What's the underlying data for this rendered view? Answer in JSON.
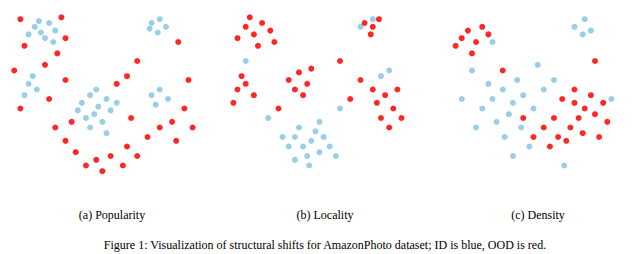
{
  "caption": "Figure 1: Visualization of structural shifts for AmazonPhoto dataset; ID is blue, OOD is red.",
  "chart_data": [
    {
      "type": "scatter",
      "title": "(a) Popularity",
      "xlim": [
        0,
        100
      ],
      "ylim": [
        0,
        100
      ],
      "tick_labels": false,
      "grid": false,
      "series": [
        {
          "name": "ID",
          "color": "#87c5e3",
          "values": [
            [
              15,
              88
            ],
            [
              18,
              85
            ],
            [
              22,
              90
            ],
            [
              25,
              86
            ],
            [
              20,
              82
            ],
            [
              12,
              84
            ],
            [
              24,
              80
            ],
            [
              17,
              91
            ],
            [
              72,
              90
            ],
            [
              76,
              92
            ],
            [
              79,
              88
            ],
            [
              75,
              85
            ],
            [
              71,
              87
            ],
            [
              12,
              58
            ],
            [
              16,
              55
            ],
            [
              10,
              52
            ],
            [
              14,
              62
            ],
            [
              38,
              48
            ],
            [
              42,
              52
            ],
            [
              46,
              46
            ],
            [
              50,
              50
            ],
            [
              44,
              42
            ],
            [
              40,
              40
            ],
            [
              48,
              38
            ],
            [
              52,
              44
            ],
            [
              36,
              44
            ],
            [
              45,
              55
            ],
            [
              55,
              48
            ],
            [
              42,
              35
            ],
            [
              50,
              32
            ],
            [
              72,
              52
            ],
            [
              76,
              55
            ],
            [
              80,
              50
            ],
            [
              74,
              47
            ]
          ]
        },
        {
          "name": "OOD",
          "color": "#ff0000",
          "values": [
            [
              8,
              92
            ],
            [
              28,
              93
            ],
            [
              30,
              82
            ],
            [
              10,
              78
            ],
            [
              26,
              74
            ],
            [
              5,
              65
            ],
            [
              20,
              68
            ],
            [
              8,
              45
            ],
            [
              22,
              50
            ],
            [
              30,
              60
            ],
            [
              60,
              62
            ],
            [
              65,
              70
            ],
            [
              85,
              80
            ],
            [
              90,
              60
            ],
            [
              88,
              45
            ],
            [
              82,
              38
            ],
            [
              76,
              35
            ],
            [
              70,
              30
            ],
            [
              60,
              25
            ],
            [
              52,
              20
            ],
            [
              45,
              18
            ],
            [
              40,
              15
            ],
            [
              35,
              22
            ],
            [
              30,
              28
            ],
            [
              25,
              35
            ],
            [
              58,
              15
            ],
            [
              65,
              20
            ],
            [
              48,
              12
            ],
            [
              84,
              28
            ],
            [
              92,
              35
            ],
            [
              55,
              58
            ],
            [
              33,
              38
            ],
            [
              62,
              40
            ]
          ]
        }
      ]
    },
    {
      "type": "scatter",
      "title": "(b) Locality",
      "xlim": [
        0,
        100
      ],
      "ylim": [
        0,
        100
      ],
      "tick_labels": false,
      "grid": false,
      "series": [
        {
          "name": "ID",
          "color": "#87c5e3",
          "values": [
            [
              38,
              30
            ],
            [
              42,
              25
            ],
            [
              46,
              28
            ],
            [
              50,
              22
            ],
            [
              44,
              20
            ],
            [
              40,
              35
            ],
            [
              35,
              25
            ],
            [
              48,
              33
            ],
            [
              52,
              30
            ],
            [
              55,
              25
            ],
            [
              45,
              15
            ],
            [
              38,
              18
            ],
            [
              50,
              38
            ],
            [
              32,
              30
            ],
            [
              58,
              20
            ],
            [
              84,
              65
            ],
            [
              80,
              62
            ],
            [
              70,
              88
            ],
            [
              76,
              92
            ],
            [
              60,
              45
            ],
            [
              25,
              40
            ],
            [
              14,
              70
            ]
          ]
        },
        {
          "name": "OOD",
          "color": "#ff0000",
          "values": [
            [
              14,
              88
            ],
            [
              18,
              84
            ],
            [
              22,
              90
            ],
            [
              26,
              86
            ],
            [
              10,
              82
            ],
            [
              20,
              78
            ],
            [
              28,
              80
            ],
            [
              16,
              93
            ],
            [
              72,
              90
            ],
            [
              76,
              88
            ],
            [
              79,
              92
            ],
            [
              75,
              84
            ],
            [
              10,
              55
            ],
            [
              14,
              58
            ],
            [
              18,
              52
            ],
            [
              12,
              62
            ],
            [
              8,
              48
            ],
            [
              35,
              60
            ],
            [
              40,
              64
            ],
            [
              44,
              58
            ],
            [
              38,
              55
            ],
            [
              46,
              66
            ],
            [
              42,
              52
            ],
            [
              78,
              48
            ],
            [
              82,
              52
            ],
            [
              86,
              45
            ],
            [
              80,
              40
            ],
            [
              88,
              55
            ],
            [
              76,
              55
            ],
            [
              84,
              35
            ],
            [
              90,
              40
            ],
            [
              70,
              60
            ],
            [
              65,
              50
            ],
            [
              30,
              45
            ],
            [
              60,
              70
            ]
          ]
        }
      ]
    },
    {
      "type": "scatter",
      "title": "(c) Density",
      "xlim": [
        0,
        100
      ],
      "ylim": [
        0,
        100
      ],
      "tick_labels": false,
      "grid": false,
      "series": [
        {
          "name": "ID",
          "color": "#87c5e3",
          "values": [
            [
              30,
              50
            ],
            [
              35,
              55
            ],
            [
              25,
              45
            ],
            [
              40,
              48
            ],
            [
              45,
              52
            ],
            [
              38,
              42
            ],
            [
              32,
              38
            ],
            [
              28,
              58
            ],
            [
              42,
              60
            ],
            [
              50,
              45
            ],
            [
              36,
              30
            ],
            [
              44,
              35
            ],
            [
              22,
              35
            ],
            [
              48,
              25
            ],
            [
              40,
              20
            ],
            [
              55,
              55
            ],
            [
              60,
              60
            ],
            [
              70,
              88
            ],
            [
              75,
              92
            ],
            [
              78,
              86
            ],
            [
              74,
              84
            ],
            [
              20,
              65
            ],
            [
              15,
              50
            ],
            [
              88,
              50
            ],
            [
              30,
              80
            ],
            [
              52,
              68
            ],
            [
              65,
              15
            ]
          ]
        },
        {
          "name": "OOD",
          "color": "#ff0000",
          "values": [
            [
              15,
              82
            ],
            [
              18,
              86
            ],
            [
              22,
              80
            ],
            [
              25,
              88
            ],
            [
              12,
              78
            ],
            [
              20,
              74
            ],
            [
              28,
              84
            ],
            [
              70,
              48
            ],
            [
              75,
              45
            ],
            [
              80,
              42
            ],
            [
              72,
              40
            ],
            [
              78,
              52
            ],
            [
              84,
              48
            ],
            [
              68,
              35
            ],
            [
              62,
              30
            ],
            [
              58,
              25
            ],
            [
              66,
              28
            ],
            [
              74,
              32
            ],
            [
              82,
              30
            ],
            [
              60,
              40
            ],
            [
              55,
              35
            ],
            [
              86,
              38
            ],
            [
              70,
              55
            ],
            [
              64,
              50
            ],
            [
              50,
              30
            ],
            [
              45,
              40
            ],
            [
              35,
              65
            ],
            [
              80,
              70
            ]
          ]
        }
      ]
    }
  ]
}
